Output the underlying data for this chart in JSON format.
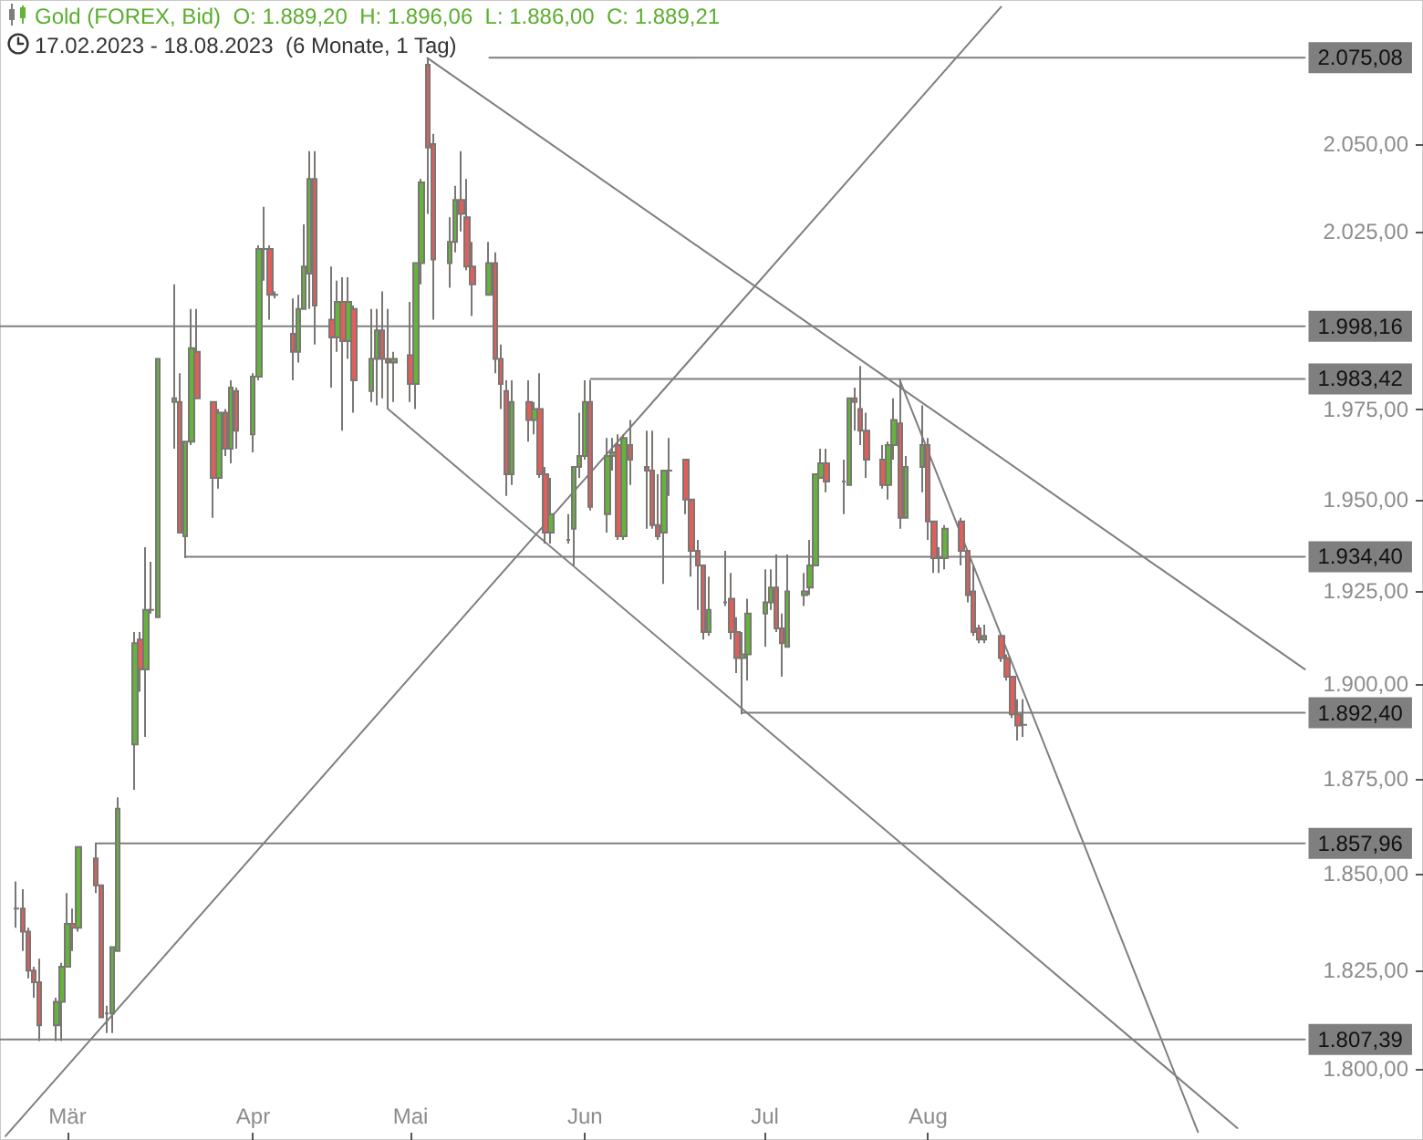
{
  "chart_data": {
    "type": "candlestick",
    "title": "Gold (FOREX, Bid)  O: 1.889,20  H: 1.896,06  L: 1.886,00  C: 1.889,21",
    "subtitle": "17.02.2023 - 18.08.2023  (6 Monate, 1 Tag)",
    "x": [
      "2023-02-20",
      "2023-02-21",
      "2023-02-22",
      "2023-02-23",
      "2023-02-24",
      "2023-02-27",
      "2023-02-28",
      "2023-03-01",
      "2023-03-02",
      "2023-03-03",
      "2023-03-06",
      "2023-03-07",
      "2023-03-08",
      "2023-03-09",
      "2023-03-10",
      "2023-03-13",
      "2023-03-14",
      "2023-03-15",
      "2023-03-16",
      "2023-03-17",
      "2023-03-20",
      "2023-03-21",
      "2023-03-22",
      "2023-03-23",
      "2023-03-24",
      "2023-03-27",
      "2023-03-28",
      "2023-03-29",
      "2023-03-30",
      "2023-03-31",
      "2023-04-03",
      "2023-04-04",
      "2023-04-05",
      "2023-04-06",
      "2023-04-07",
      "2023-04-10",
      "2023-04-11",
      "2023-04-12",
      "2023-04-13",
      "2023-04-14",
      "2023-04-17",
      "2023-04-18",
      "2023-04-19",
      "2023-04-20",
      "2023-04-21",
      "2023-04-24",
      "2023-04-25",
      "2023-04-26",
      "2023-04-27",
      "2023-04-28",
      "2023-05-01",
      "2023-05-02",
      "2023-05-03",
      "2023-05-04",
      "2023-05-05",
      "2023-05-08",
      "2023-05-09",
      "2023-05-10",
      "2023-05-11",
      "2023-05-12",
      "2023-05-15",
      "2023-05-16",
      "2023-05-17",
      "2023-05-18",
      "2023-05-19",
      "2023-05-22",
      "2023-05-23",
      "2023-05-24",
      "2023-05-25",
      "2023-05-26",
      "2023-05-29",
      "2023-05-30",
      "2023-05-31",
      "2023-06-01",
      "2023-06-02",
      "2023-06-05",
      "2023-06-06",
      "2023-06-07",
      "2023-06-08",
      "2023-06-09",
      "2023-06-12",
      "2023-06-13",
      "2023-06-14",
      "2023-06-15",
      "2023-06-16",
      "2023-06-19",
      "2023-06-20",
      "2023-06-21",
      "2023-06-22",
      "2023-06-23",
      "2023-06-26",
      "2023-06-27",
      "2023-06-28",
      "2023-06-29",
      "2023-06-30",
      "2023-07-03",
      "2023-07-04",
      "2023-07-05",
      "2023-07-06",
      "2023-07-07",
      "2023-07-10",
      "2023-07-11",
      "2023-07-12",
      "2023-07-13",
      "2023-07-14",
      "2023-07-17",
      "2023-07-18",
      "2023-07-19",
      "2023-07-20",
      "2023-07-21",
      "2023-07-24",
      "2023-07-25",
      "2023-07-26",
      "2023-07-27",
      "2023-07-28",
      "2023-07-31",
      "2023-08-01",
      "2023-08-02",
      "2023-08-03",
      "2023-08-04",
      "2023-08-07",
      "2023-08-08",
      "2023-08-09",
      "2023-08-10",
      "2023-08-11",
      "2023-08-14",
      "2023-08-15",
      "2023-08-16",
      "2023-08-17",
      "2023-08-18"
    ],
    "ohlc": [
      [
        1841,
        1848,
        1836,
        1841
      ],
      [
        1841,
        1846,
        1830,
        1835
      ],
      [
        1835,
        1836,
        1823,
        1825
      ],
      [
        1825,
        1826,
        1818,
        1822
      ],
      [
        1822,
        1828,
        1807,
        1811
      ],
      [
        1811,
        1818,
        1807,
        1817
      ],
      [
        1817,
        1827,
        1807,
        1826
      ],
      [
        1826,
        1845,
        1826,
        1837
      ],
      [
        1837,
        1841,
        1830,
        1836
      ],
      [
        1836,
        1857,
        1835,
        1857
      ],
      [
        1854,
        1858,
        1845,
        1847
      ],
      [
        1847,
        1847,
        1813,
        1813
      ],
      [
        1814,
        1816,
        1809,
        1814
      ],
      [
        1814,
        1831,
        1809,
        1831
      ],
      [
        1830,
        1870,
        1830,
        1867
      ],
      [
        1884,
        1914,
        1872,
        1911
      ],
      [
        1912,
        1914,
        1898,
        1904
      ],
      [
        1904,
        1937,
        1886,
        1920
      ],
      [
        1920,
        1933,
        1919,
        1920
      ],
      [
        1918,
        1989,
        1918,
        1989
      ],
      [
        1977,
        2010,
        1964,
        1978
      ],
      [
        1977,
        1985,
        1941,
        1941
      ],
      [
        1940,
        1966,
        1934,
        1966
      ],
      [
        1966,
        2003,
        1965,
        1992
      ],
      [
        1991,
        2003,
        1978,
        1978
      ],
      [
        1977,
        1977,
        1945,
        1956
      ],
      [
        1956,
        1975,
        1953,
        1974
      ],
      [
        1974,
        1975,
        1962,
        1964
      ],
      [
        1964,
        1983,
        1960,
        1981
      ],
      [
        1980,
        1981,
        1964,
        1969
      ],
      [
        1968,
        1985,
        1963,
        1984
      ],
      [
        1984,
        2021,
        1983,
        2020
      ],
      [
        2020,
        2032,
        2011,
        2020
      ],
      [
        2020,
        2021,
        2000,
        2007
      ],
      [
        2007,
        2008,
        2006,
        2007
      ],
      [
        1996,
        2006,
        1983,
        1991
      ],
      [
        1991,
        2007,
        1988,
        2003
      ],
      [
        2003,
        2027,
        2003,
        2015
      ],
      [
        2013,
        2048,
        2003,
        2040
      ],
      [
        2040,
        2048,
        1993,
        2004
      ],
      [
        2000,
        2015,
        1981,
        1995
      ],
      [
        1995,
        2011,
        1991,
        2005
      ],
      [
        2005,
        2012,
        1969,
        1994
      ],
      [
        1994,
        2012,
        1989,
        2005
      ],
      [
        2003,
        2004,
        1974,
        1983
      ],
      [
        1980,
        2003,
        1977,
        1989
      ],
      [
        1989,
        2003,
        1976,
        1997
      ],
      [
        1997,
        2008,
        1978,
        1989
      ],
      [
        1989,
        2003,
        1975,
        1988
      ],
      [
        1988,
        1991,
        1977,
        1989
      ],
      [
        1990,
        2005,
        1977,
        1982
      ],
      [
        1982,
        2016,
        1975,
        2016
      ],
      [
        2016,
        2040,
        2010,
        2039
      ],
      [
        2073,
        2075,
        2030,
        2049
      ],
      [
        2050,
        2053,
        2000,
        2017
      ],
      [
        2016,
        2029,
        2009,
        2022
      ],
      [
        2022,
        2038,
        2019,
        2034
      ],
      [
        2034,
        2048,
        2025,
        2030
      ],
      [
        2029,
        2040,
        2014,
        2015
      ],
      [
        2015,
        2022,
        2001,
        2010
      ],
      [
        2007,
        2022,
        2007,
        2016
      ],
      [
        2016,
        2019,
        1985,
        1989
      ],
      [
        1989,
        1993,
        1975,
        1982
      ],
      [
        1980,
        1983,
        1951,
        1957
      ],
      [
        1957,
        1983,
        1954,
        1977
      ],
      [
        1977,
        1983,
        1966,
        1972
      ],
      [
        1972,
        1977,
        1968,
        1975
      ],
      [
        1975,
        1985,
        1956,
        1957
      ],
      [
        1957,
        1959,
        1938,
        1941
      ],
      [
        1941,
        1956,
        1938,
        1946
      ],
      [
        1939,
        1946,
        1938,
        1939
      ],
      [
        1942,
        1959,
        1932,
        1959
      ],
      [
        1959,
        1974,
        1956,
        1962
      ],
      [
        1962,
        1983,
        1961,
        1977
      ],
      [
        1977,
        1983,
        1947,
        1948
      ],
      [
        1946,
        1967,
        1941,
        1962
      ],
      [
        1962,
        1967,
        1958,
        1963
      ],
      [
        1965,
        1968,
        1939,
        1940
      ],
      [
        1940,
        1968,
        1939,
        1967
      ],
      [
        1965,
        1972,
        1954,
        1961
      ],
      [
        1959,
        1969,
        1942,
        1958
      ],
      [
        1958,
        1969,
        1942,
        1943
      ],
      [
        1943,
        1957,
        1939,
        1940
      ],
      [
        1941,
        1958,
        1927,
        1958
      ],
      [
        1958,
        1967,
        1951,
        1958
      ],
      [
        1961,
        1961,
        1946,
        1950
      ],
      [
        1950,
        1950,
        1929,
        1936
      ],
      [
        1936,
        1939,
        1920,
        1932
      ],
      [
        1932,
        1932,
        1912,
        1914
      ],
      [
        1914,
        1929,
        1913,
        1920
      ],
      [
        1922,
        1936,
        1921,
        1922
      ],
      [
        1923,
        1930,
        1912,
        1914
      ],
      [
        1914,
        1918,
        1903,
        1907
      ],
      [
        1907,
        1914,
        1892,
        1908
      ],
      [
        1908,
        1923,
        1901,
        1919
      ],
      [
        1919,
        1931,
        1910,
        1922
      ],
      [
        1922,
        1931,
        1920,
        1926
      ],
      [
        1926,
        1935,
        1914,
        1915
      ],
      [
        1915,
        1919,
        1902,
        1911
      ],
      [
        1910,
        1935,
        1910,
        1925
      ],
      [
        1924,
        1930,
        1921,
        1925
      ],
      [
        1926,
        1939,
        1924,
        1932
      ],
      [
        1932,
        1957,
        1932,
        1957
      ],
      [
        1956,
        1964,
        1956,
        1960
      ],
      [
        1960,
        1964,
        1952,
        1955
      ],
      [
        1955,
        1961,
        1946,
        1955
      ],
      [
        1954,
        1978,
        1954,
        1978
      ],
      [
        1978,
        1981,
        1969,
        1977
      ],
      [
        1975,
        1987,
        1965,
        1969
      ],
      [
        1969,
        1974,
        1956,
        1961
      ],
      [
        1961,
        1965,
        1953,
        1954
      ],
      [
        1954,
        1966,
        1950,
        1965
      ],
      [
        1965,
        1978,
        1961,
        1972
      ],
      [
        1971,
        1983,
        1942,
        1945
      ],
      [
        1945,
        1962,
        1945,
        1959
      ],
      [
        1959,
        1976,
        1952,
        1965
      ],
      [
        1965,
        1967,
        1939,
        1944
      ],
      [
        1944,
        1944,
        1930,
        1934
      ],
      [
        1934,
        1937,
        1930,
        1934
      ],
      [
        1934,
        1943,
        1931,
        1942
      ],
      [
        1944,
        1945,
        1932,
        1936
      ],
      [
        1936,
        1936,
        1922,
        1924
      ],
      [
        1925,
        1932,
        1913,
        1914
      ],
      [
        1915,
        1916,
        1911,
        1912
      ],
      [
        1912,
        1916,
        1911,
        1913
      ],
      [
        1913,
        1913,
        1906,
        1907
      ],
      [
        1907,
        1908,
        1901,
        1902
      ],
      [
        1902,
        1902,
        1891,
        1892
      ],
      [
        1892,
        1896,
        1885,
        1889
      ],
      [
        1889.2,
        1896.06,
        1886.0,
        1889.21
      ]
    ],
    "colors": [
      "#7d7d7d",
      "#e35d5a",
      "#e35d5a",
      "#e35d5a",
      "#e35d5a",
      "#62b53a",
      "#62b53a",
      "#62b53a",
      "#e35d5a",
      "#62b53a",
      "#e35d5a",
      "#e35d5a",
      "#7d7d7d",
      "#62b53a",
      "#62b53a",
      "#62b53a",
      "#e35d5a",
      "#62b53a",
      "#7d7d7d",
      "#62b53a",
      "#62b53a",
      "#e35d5a",
      "#62b53a",
      "#62b53a",
      "#e35d5a",
      "#e35d5a",
      "#62b53a",
      "#e35d5a",
      "#62b53a",
      "#e35d5a",
      "#62b53a",
      "#62b53a",
      "#7d7d7d",
      "#e35d5a",
      "#7d7d7d",
      "#e35d5a",
      "#62b53a",
      "#62b53a",
      "#62b53a",
      "#e35d5a",
      "#e35d5a",
      "#62b53a",
      "#e35d5a",
      "#62b53a",
      "#e35d5a",
      "#62b53a",
      "#62b53a",
      "#e35d5a",
      "#e35d5a",
      "#62b53a",
      "#e35d5a",
      "#62b53a",
      "#62b53a",
      "#e35d5a",
      "#e35d5a",
      "#62b53a",
      "#62b53a",
      "#e35d5a",
      "#e35d5a",
      "#e35d5a",
      "#62b53a",
      "#e35d5a",
      "#e35d5a",
      "#e35d5a",
      "#62b53a",
      "#e35d5a",
      "#62b53a",
      "#e35d5a",
      "#e35d5a",
      "#62b53a",
      "#7d7d7d",
      "#62b53a",
      "#62b53a",
      "#62b53a",
      "#e35d5a",
      "#62b53a",
      "#62b53a",
      "#e35d5a",
      "#62b53a",
      "#e35d5a",
      "#e35d5a",
      "#e35d5a",
      "#e35d5a",
      "#62b53a",
      "#7d7d7d",
      "#e35d5a",
      "#e35d5a",
      "#e35d5a",
      "#e35d5a",
      "#62b53a",
      "#7d7d7d",
      "#e35d5a",
      "#e35d5a",
      "#62b53a",
      "#62b53a",
      "#62b53a",
      "#62b53a",
      "#e35d5a",
      "#e35d5a",
      "#62b53a",
      "#62b53a",
      "#62b53a",
      "#62b53a",
      "#62b53a",
      "#e35d5a",
      "#7d7d7d",
      "#62b53a",
      "#e35d5a",
      "#e35d5a",
      "#e35d5a",
      "#e35d5a",
      "#62b53a",
      "#62b53a",
      "#e35d5a",
      "#62b53a",
      "#62b53a",
      "#e35d5a",
      "#e35d5a",
      "#7d7d7d",
      "#62b53a",
      "#e35d5a",
      "#e35d5a",
      "#e35d5a",
      "#e35d5a",
      "#62b53a",
      "#e35d5a",
      "#e35d5a",
      "#e35d5a",
      "#e35d5a",
      "#62b53a"
    ],
    "xlim": [
      "2023-02-17",
      "2023-10-28"
    ],
    "xticks": [
      {
        "value": "2023-03-01",
        "label": "Mär"
      },
      {
        "value": "2023-04-03",
        "label": "Apr"
      },
      {
        "value": "2023-05-01",
        "label": "Mai"
      },
      {
        "value": "2023-06-01",
        "label": "Jun"
      },
      {
        "value": "2023-07-03",
        "label": "Jul"
      },
      {
        "value": "2023-08-01",
        "label": "Aug"
      }
    ],
    "ylim": [
      1782,
      2092
    ],
    "yticks": [
      {
        "value": 1800,
        "label": "1.800,00"
      },
      {
        "value": 1825,
        "label": "1.825,00"
      },
      {
        "value": 1850,
        "label": "1.850,00"
      },
      {
        "value": 1875,
        "label": "1.875,00"
      },
      {
        "value": 1900,
        "label": "1.900,00"
      },
      {
        "value": 1925,
        "label": "1.925,00"
      },
      {
        "value": 1950,
        "label": "1.950,00"
      },
      {
        "value": 1975,
        "label": "1.975,00"
      },
      {
        "value": 2025,
        "label": "2.025,00"
      },
      {
        "value": 2050,
        "label": "2.050,00"
      }
    ],
    "log": true,
    "marker": "none",
    "series": [
      {
        "type": "line",
        "x": [
          "2023-02-18",
          "2023-08-14"
        ],
        "values": [
          1783,
          2090
        ],
        "color": "#7f7f7f"
      },
      {
        "type": "line",
        "x": [
          "2023-05-04",
          "2023-10-07"
        ],
        "values": [
          2075,
          1904
        ],
        "color": "#7f7f7f"
      },
      {
        "type": "line",
        "x": [
          "2023-04-27",
          "2023-09-25"
        ],
        "values": [
          1975,
          1785
        ],
        "color": "#7f7f7f"
      },
      {
        "type": "line",
        "x": [
          "2023-07-27",
          "2023-09-18"
        ],
        "values": [
          1983,
          1784
        ],
        "color": "#7f7f7f"
      },
      {
        "type": "line",
        "x": [
          "2023-05-15",
          "2023-10-07"
        ],
        "values": [
          2075.08,
          2075.08
        ],
        "color": "#7f7f7f",
        "value_labels": [
          null,
          "2.075,08"
        ]
      },
      {
        "type": "line",
        "x": [
          "2023-02-17",
          "2023-10-07"
        ],
        "values": [
          1998.16,
          1998.16
        ],
        "color": "#7f7f7f",
        "value_labels": [
          null,
          "1.998,16"
        ]
      },
      {
        "type": "line",
        "x": [
          "2023-06-02",
          "2023-10-07"
        ],
        "values": [
          1983.42,
          1983.42
        ],
        "color": "#7f7f7f",
        "value_labels": [
          null,
          "1.983,42"
        ]
      },
      {
        "type": "line",
        "x": [
          "2023-03-22",
          "2023-10-07"
        ],
        "values": [
          1934.4,
          1934.4
        ],
        "color": "#7f7f7f",
        "value_labels": [
          null,
          "1.934,40"
        ]
      },
      {
        "type": "line",
        "x": [
          "2023-06-29",
          "2023-10-07"
        ],
        "values": [
          1892.4,
          1892.4
        ],
        "color": "#7f7f7f",
        "value_labels": [
          null,
          "1.892,40"
        ]
      },
      {
        "type": "line",
        "x": [
          "2023-03-06",
          "2023-10-07"
        ],
        "values": [
          1857.96,
          1857.96
        ],
        "color": "#7f7f7f",
        "value_labels": [
          null,
          "1.857,96"
        ]
      },
      {
        "type": "line",
        "x": [
          "2023-02-17",
          "2023-10-07"
        ],
        "values": [
          1807.39,
          1807.39
        ],
        "color": "#7f7f7f",
        "value_labels": [
          null,
          "1.807,39"
        ]
      }
    ]
  }
}
